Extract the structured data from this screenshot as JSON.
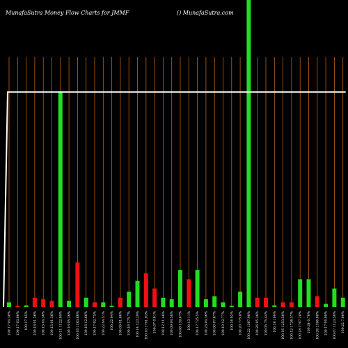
{
  "header": {
    "title": "MunafaSutra  Money Flow  Charts for JMMF",
    "site": "() MunafaSutra.com"
  },
  "chart_data": {
    "type": "bar",
    "title": "MunafaSutra  Money Flow  Charts for JMMF",
    "colors": {
      "up": "#22dd22",
      "down": "#ee1111",
      "line": "#ffffff",
      "grid": "#b8651a",
      "background": "#000000"
    },
    "ylim": [
      0,
      100
    ],
    "line_value": 70,
    "categories": [
      "100.17 04.30%",
      "100.17 03.00%",
      "100.17 05%",
      "100.18 01.36%",
      "100.15 04.36%",
      "100.15 01.36%",
      "100.11 1122.09%",
      "100.16 05.36%",
      "100.16 1183.86%",
      "100.16 12.66%",
      "100.17 02.75%",
      "100.22 04.51%",
      "100.22 04%",
      "100.09 01.60%",
      "100.16 175.7%",
      "100.14 123.29%",
      "100.10 1791.93%",
      "100.07 0.01%",
      "100.12 11.46%",
      "100.09 04.58%",
      "100.08 139.07%",
      "100.13 11%",
      "100.17 725.5%",
      "100.23 04.36%",
      "100.00 07.67%",
      "100.18 12.77%",
      "100.16 02%",
      "100.20 775.8%",
      "100.22 1387.96%",
      "100.26 05.36%",
      "100.05 75.44%",
      "100.18 100%",
      "100.16 1253.50%",
      "100.12 1726.37%",
      "100.18 1707.28%",
      "100.24 0.76%",
      "100.26 1390.88%",
      "100.17 05.00%",
      "100.07 1123.50%",
      "100.22 7.00%"
    ],
    "values": [
      1.5,
      0.3,
      0.5,
      3,
      2.5,
      2,
      70,
      2,
      14.5,
      3,
      1.5,
      1.5,
      0.3,
      3,
      5,
      8.5,
      11,
      6,
      3,
      2.5,
      12,
      9,
      12,
      2.5,
      3.5,
      1.5,
      0.3,
      5,
      100,
      3,
      3,
      0.5,
      1.5,
      1.5,
      9,
      9,
      3.5,
      1,
      6,
      3
    ],
    "directions": [
      "up",
      "down",
      "up",
      "down",
      "down",
      "down",
      "up",
      "up",
      "down",
      "up",
      "down",
      "up",
      "up",
      "down",
      "up",
      "up",
      "down",
      "down",
      "up",
      "up",
      "up",
      "down",
      "up",
      "up",
      "up",
      "up",
      "up",
      "up",
      "up",
      "down",
      "down",
      "up",
      "down",
      "down",
      "up",
      "up",
      "down",
      "up",
      "up",
      "up"
    ]
  }
}
